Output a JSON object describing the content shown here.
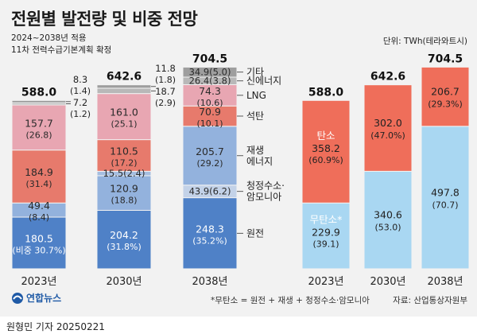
{
  "header": {
    "title": "전원별 발전량 및 비중 전망",
    "subtitle_line1": "2024~2038년 적용",
    "subtitle_line2": "11차 전력수급기본계획 확정",
    "unit": "단위: TWh(테라와트시)"
  },
  "footer": {
    "footnote": "*무탄소 = 원전 + 재생 + 청정수소·암모니아",
    "source": "자료: 산업통상자원부",
    "logo_text": "연합뉴스",
    "credit": "원형민 기자  20250221"
  },
  "colors": {
    "원전": "#4f81c7",
    "재생에너지": "#93b2dd",
    "청정수소·암모니아": "#c3d2e8",
    "석탄": "#e77a6c",
    "LNG": "#e8a6b2",
    "신에너지": "#b8b8b8",
    "기타": "#9e9e9e",
    "탄소": "#ef6e5a",
    "무탄소": "#a9d7f2"
  },
  "chart_data": [
    {
      "type": "bar",
      "stacked": true,
      "categories": [
        "2023년",
        "2030년",
        "2038년"
      ],
      "totals": [
        588.0,
        642.6,
        704.5
      ],
      "totals_labels": [
        "588.0",
        "642.6",
        "704.5"
      ],
      "series": [
        {
          "name": "원전",
          "values": [
            180.5,
            204.2,
            248.3
          ],
          "labels": [
            "180.5",
            "204.2",
            "248.3"
          ],
          "pct_labels": [
            "(비중 30.7%)",
            "(31.8%)",
            "(35.2%)"
          ]
        },
        {
          "name": "청정수소·암모니아",
          "values": [
            0,
            0,
            43.9
          ],
          "labels": [
            "",
            "",
            "43.9"
          ],
          "pct_labels": [
            "",
            "",
            "(6.2)"
          ]
        },
        {
          "name": "재생에너지",
          "values": [
            49.4,
            120.9,
            205.7
          ],
          "labels": [
            "49.4",
            "120.9",
            "205.7"
          ],
          "pct_labels": [
            "(8.4)",
            "(18.8)",
            "(29.2)"
          ]
        },
        {
          "name": "__unnamed",
          "values": [
            0,
            15.5,
            0
          ],
          "labels": [
            "",
            "15.5",
            ""
          ],
          "pct_labels": [
            "",
            "(2.4)",
            ""
          ]
        },
        {
          "name": "석탄",
          "values": [
            184.9,
            110.5,
            70.9
          ],
          "labels": [
            "184.9",
            "110.5",
            "70.9"
          ],
          "pct_labels": [
            "(31.4)",
            "(17.2)",
            "(10.1)"
          ]
        },
        {
          "name": "LNG",
          "values": [
            157.7,
            161.0,
            74.3
          ],
          "labels": [
            "157.7",
            "161.0",
            "74.3"
          ],
          "pct_labels": [
            "(26.8)",
            "(25.1)",
            "(10.6)"
          ]
        },
        {
          "name": "신에너지",
          "values": [
            7.2,
            18.7,
            26.4
          ],
          "labels": [
            "7.2",
            "18.7",
            "26.4"
          ],
          "pct_labels": [
            "(1.2)",
            "(2.9)",
            "(3.8)"
          ]
        },
        {
          "name": "기타",
          "values": [
            8.3,
            11.8,
            34.9
          ],
          "labels": [
            "8.3",
            "11.8",
            "34.9"
          ],
          "pct_labels": [
            "(1.4)",
            "(1.8)",
            "(5.0)"
          ]
        }
      ],
      "legend_labels": {
        "기타": "기타",
        "신에너지": "신에너지",
        "LNG": "LNG",
        "석탄": "석탄",
        "청정수소·암모니아": "청정수소·\n암모니아",
        "재생에너지": "재생\n에너지",
        "원전": "원전"
      }
    },
    {
      "type": "bar",
      "stacked": true,
      "categories": [
        "2023년",
        "2030년",
        "2038년"
      ],
      "totals": [
        588.0,
        642.6,
        704.5
      ],
      "totals_labels": [
        "588.0",
        "642.6",
        "704.5"
      ],
      "series": [
        {
          "name": "무탄소",
          "tag": "무탄소*",
          "values": [
            229.9,
            340.6,
            497.8
          ],
          "labels": [
            "229.9",
            "340.6",
            "497.8"
          ],
          "pct_labels": [
            "(39.1)",
            "(53.0)",
            "(70.7)"
          ]
        },
        {
          "name": "탄소",
          "tag": "탄소",
          "values": [
            358.2,
            302.0,
            206.7
          ],
          "labels": [
            "358.2",
            "302.0",
            "206.7"
          ],
          "pct_labels": [
            "(60.9%)",
            "(47.0%)",
            "(29.3%)"
          ]
        }
      ]
    }
  ]
}
